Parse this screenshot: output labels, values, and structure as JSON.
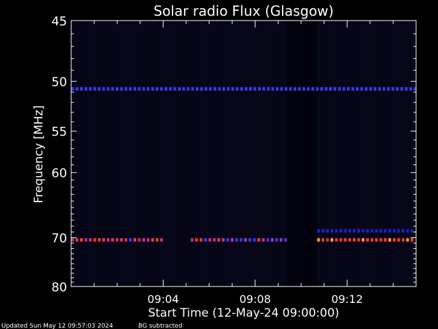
{
  "chart_data": {
    "type": "heatmap",
    "title": "Solar radio Flux (Glasgow)",
    "xlabel": "Start Time (12-May-24 09:00:00)",
    "ylabel": "Frequency [MHz]",
    "xlim_minutes": [
      0,
      15
    ],
    "ylim_mhz": [
      45,
      80
    ],
    "y_ticks": [
      {
        "value": 45,
        "label": "45"
      },
      {
        "value": 50,
        "label": "50"
      },
      {
        "value": 55,
        "label": "55"
      },
      {
        "value": 60,
        "label": "60"
      },
      {
        "value": 70,
        "label": "70"
      },
      {
        "value": 80,
        "label": "80"
      }
    ],
    "x_ticks": [
      {
        "value": 4,
        "label": "09:04"
      },
      {
        "value": 8,
        "label": "09:08"
      },
      {
        "value": 12,
        "label": "09:12"
      }
    ],
    "colors": {
      "background": "#000000",
      "plot_background": "#060616",
      "axes": "#ffffff",
      "weak": "#2020c8",
      "medium": "#3a3aff",
      "strong": "#ff3a2a",
      "hot": "#ffa040",
      "mixed": "#c03090"
    },
    "bands": [
      {
        "freq_mhz": 50.7,
        "start_min": 0.0,
        "end_min": 15.0,
        "level": "medium"
      },
      {
        "freq_mhz": 70.4,
        "start_min": 0.0,
        "end_min": 4.1,
        "level": "mixed"
      },
      {
        "freq_mhz": 70.4,
        "start_min": 5.2,
        "end_min": 9.4,
        "level": "mixed"
      },
      {
        "freq_mhz": 70.4,
        "start_min": 10.7,
        "end_min": 15.0,
        "level": "strong"
      },
      {
        "freq_mhz": 68.8,
        "start_min": 10.7,
        "end_min": 15.0,
        "level": "weak"
      }
    ],
    "gap_minutes": [
      9.4,
      10.7
    ]
  },
  "footer": {
    "updated": "Updated Sun May 12 09:57:03 2024",
    "bg": "BG subtracted"
  }
}
